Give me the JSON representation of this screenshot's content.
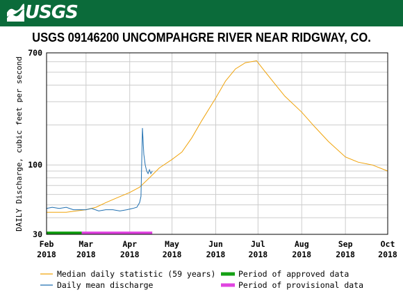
{
  "banner": {
    "logo_text": "USGS",
    "color": "#0b6b3a"
  },
  "title": "USGS 09146200 UNCOMPAHGRE RIVER NEAR RIDGWAY, CO.",
  "chart_data": {
    "type": "line",
    "title": "USGS 09146200 UNCOMPAHGRE RIVER NEAR RIDGWAY, CO.",
    "ylabel": "DAILY Discharge, cubic feet per second",
    "yscale": "log",
    "ylim": [
      30,
      700
    ],
    "xlim": [
      "2018-02-01",
      "2018-10-01"
    ],
    "y_ticks": [
      30,
      100,
      700
    ],
    "x_ticks": [
      {
        "date": "2018-02-01",
        "label1": "Feb",
        "label2": "2018"
      },
      {
        "date": "2018-03-01",
        "label1": "Mar",
        "label2": "2018"
      },
      {
        "date": "2018-04-01",
        "label1": "Apr",
        "label2": "2018"
      },
      {
        "date": "2018-05-01",
        "label1": "May",
        "label2": "2018"
      },
      {
        "date": "2018-06-01",
        "label1": "Jun",
        "label2": "2018"
      },
      {
        "date": "2018-07-01",
        "label1": "Jul",
        "label2": "2018"
      },
      {
        "date": "2018-08-01",
        "label1": "Aug",
        "label2": "2018"
      },
      {
        "date": "2018-09-01",
        "label1": "Sep",
        "label2": "2018"
      },
      {
        "date": "2018-10-01",
        "label1": "Oct",
        "label2": "2018"
      }
    ],
    "grid": true,
    "series": [
      {
        "name": "Median daily statistic (59 years)",
        "color": "#f0a30a",
        "points": [
          [
            "2018-02-01",
            44
          ],
          [
            "2018-02-08",
            44
          ],
          [
            "2018-02-15",
            44
          ],
          [
            "2018-02-22",
            45
          ],
          [
            "2018-03-01",
            46
          ],
          [
            "2018-03-08",
            48
          ],
          [
            "2018-03-15",
            52
          ],
          [
            "2018-03-22",
            56
          ],
          [
            "2018-04-01",
            62
          ],
          [
            "2018-04-08",
            68
          ],
          [
            "2018-04-15",
            80
          ],
          [
            "2018-04-22",
            95
          ],
          [
            "2018-05-01",
            110
          ],
          [
            "2018-05-08",
            125
          ],
          [
            "2018-05-15",
            160
          ],
          [
            "2018-05-22",
            215
          ],
          [
            "2018-06-01",
            320
          ],
          [
            "2018-06-08",
            430
          ],
          [
            "2018-06-15",
            530
          ],
          [
            "2018-06-22",
            590
          ],
          [
            "2018-06-30",
            610
          ],
          [
            "2018-07-05",
            520
          ],
          [
            "2018-07-12",
            420
          ],
          [
            "2018-07-20",
            330
          ],
          [
            "2018-08-01",
            250
          ],
          [
            "2018-08-10",
            195
          ],
          [
            "2018-08-20",
            150
          ],
          [
            "2018-09-01",
            115
          ],
          [
            "2018-09-10",
            105
          ],
          [
            "2018-09-20",
            100
          ],
          [
            "2018-10-01",
            90
          ]
        ]
      },
      {
        "name": "Daily mean discharge",
        "color": "#1f6fb0",
        "points": [
          [
            "2018-02-01",
            47
          ],
          [
            "2018-02-05",
            48
          ],
          [
            "2018-02-10",
            47
          ],
          [
            "2018-02-15",
            48
          ],
          [
            "2018-02-20",
            46
          ],
          [
            "2018-02-25",
            46
          ],
          [
            "2018-03-01",
            46
          ],
          [
            "2018-03-05",
            47
          ],
          [
            "2018-03-10",
            45
          ],
          [
            "2018-03-15",
            46
          ],
          [
            "2018-03-20",
            46
          ],
          [
            "2018-03-25",
            45
          ],
          [
            "2018-03-30",
            46
          ],
          [
            "2018-04-03",
            47
          ],
          [
            "2018-04-06",
            48
          ],
          [
            "2018-04-08",
            52
          ],
          [
            "2018-04-09",
            58
          ],
          [
            "2018-04-10",
            190
          ],
          [
            "2018-04-11",
            120
          ],
          [
            "2018-04-12",
            100
          ],
          [
            "2018-04-13",
            90
          ],
          [
            "2018-04-14",
            86
          ],
          [
            "2018-04-15",
            92
          ],
          [
            "2018-04-16",
            86
          ],
          [
            "2018-04-17",
            90
          ]
        ]
      }
    ],
    "period_bars": [
      {
        "name": "Period of approved data",
        "color": "#14a014",
        "start": "2018-02-01",
        "end": "2018-02-26"
      },
      {
        "name": "Period of provisional data",
        "color": "#e044e0",
        "start": "2018-02-26",
        "end": "2018-04-17"
      }
    ]
  },
  "legend": {
    "median": "Median daily statistic (59 years)",
    "mean": "Daily mean discharge",
    "approved": "Period of approved data",
    "provisional": "Period of provisional data"
  }
}
